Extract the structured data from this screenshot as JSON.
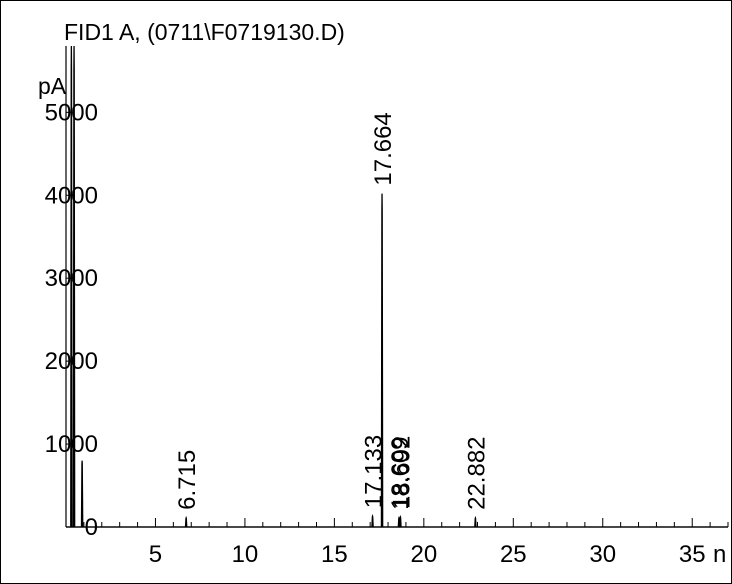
{
  "chart_data": {
    "type": "line",
    "title": "FID1 A,  (0711\\F0719130.D)",
    "ylabel": "pA",
    "xlabel": "min",
    "xlim": [
      0.0,
      37.0
    ],
    "ylim": [
      0,
      5800
    ],
    "x_ticks": [
      5,
      10,
      15,
      20,
      25,
      30,
      35
    ],
    "x_tick_labels": [
      "5",
      "10",
      "15",
      "20",
      "25",
      "30",
      "35"
    ],
    "x_unit_visible": "n",
    "y_ticks": [
      0,
      1000,
      2000,
      3000,
      4000,
      5000
    ],
    "y_tick_labels": [
      "0",
      "1000",
      "2000",
      "3000",
      "4000",
      "5000"
    ],
    "grid": false,
    "series": [
      {
        "color": "#000000",
        "baseline": 0,
        "peaks": [
          {
            "rt": 0.3,
            "height": 5800,
            "label": ""
          },
          {
            "rt": 0.45,
            "height": 5800,
            "label": ""
          },
          {
            "rt": 0.9,
            "height": 800,
            "label": ""
          },
          {
            "rt": 6.715,
            "height": 110,
            "label": "6.715"
          },
          {
            "rt": 17.133,
            "height": 130,
            "label": "17.133"
          },
          {
            "rt": 17.664,
            "height": 4020,
            "label": "17.664"
          },
          {
            "rt": 18.609,
            "height": 110,
            "label": "18.609"
          },
          {
            "rt": 18.692,
            "height": 120,
            "label": "18.692"
          },
          {
            "rt": 22.882,
            "height": 110,
            "label": "22.882"
          }
        ]
      }
    ]
  }
}
